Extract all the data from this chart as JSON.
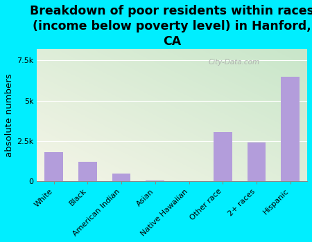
{
  "categories": [
    "White",
    "Black",
    "American Indian",
    "Asian",
    "Native Hawaiian",
    "Other race",
    "2+ races",
    "Hispanic"
  ],
  "values": [
    1800,
    1200,
    500,
    50,
    30,
    3050,
    2400,
    6500
  ],
  "bar_color": "#b39ddb",
  "title": "Breakdown of poor residents within races\n(income below poverty level) in Hanford,\nCA",
  "ylabel": "absolute numbers",
  "ylim": [
    0,
    8200
  ],
  "yticks": [
    0,
    2500,
    5000,
    7500
  ],
  "ytick_labels": [
    "0",
    "2.5k",
    "5k",
    "7.5k"
  ],
  "background_outer": "#00eeff",
  "bg_color_topleft": "#c8e6c9",
  "bg_color_bottomright": "#f5f5e8",
  "watermark": "City-Data.com",
  "title_fontsize": 12.5,
  "ylabel_fontsize": 9.5,
  "tick_fontsize": 8,
  "xlabel_fontsize": 8
}
